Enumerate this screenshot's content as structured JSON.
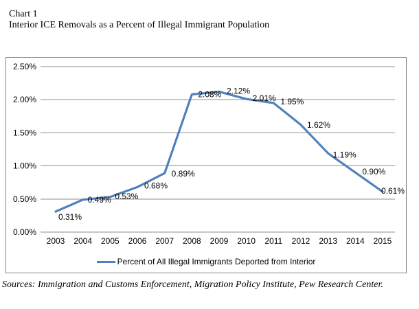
{
  "header": {
    "label": "Chart 1",
    "title": "Interior ICE Removals as a Percent of Illegal Immigrant Population"
  },
  "footer": {
    "sources": "Sources: Immigration and Customs Enforcement, Migration Policy Institute, Pew Research Center."
  },
  "chart_data": {
    "type": "line",
    "title": "Interior ICE Removals as a Percent of Illegal Immigrant Population",
    "categories": [
      "2003",
      "2004",
      "2005",
      "2006",
      "2007",
      "2008",
      "2009",
      "2010",
      "2011",
      "2012",
      "2013",
      "2014",
      "2015"
    ],
    "series": [
      {
        "name": "Percent of All Illegal Immigrants Deported from Interior",
        "values": [
          0.31,
          0.49,
          0.53,
          0.68,
          0.89,
          2.08,
          2.12,
          2.01,
          1.95,
          1.62,
          1.19,
          0.9,
          0.61
        ],
        "color": "#4f81bd"
      }
    ],
    "data_labels": [
      "0.31%",
      "0.49%",
      "0.53%",
      "0.68%",
      "0.89%",
      "2.08%",
      "2.12%",
      "2.01%",
      "1.95%",
      "1.62%",
      "1.19%",
      "0.90%",
      "0.61%"
    ],
    "y_ticks": [
      "0.00%",
      "0.50%",
      "1.00%",
      "1.50%",
      "2.00%",
      "2.50%"
    ],
    "ylim": [
      0,
      2.5
    ],
    "xlabel": "",
    "ylabel": "",
    "grid": "horizontal",
    "legend_position": "bottom",
    "colors": {
      "line": "#4f81bd",
      "grid": "#8c8c8c",
      "border": "#7f7f7f",
      "text": "#000000",
      "background": "#ffffff"
    }
  }
}
